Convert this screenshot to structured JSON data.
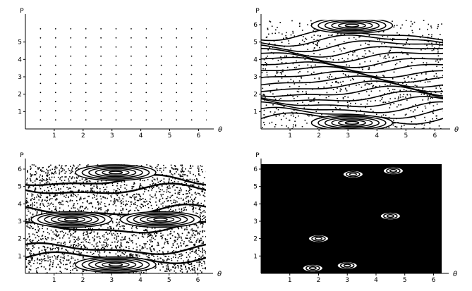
{
  "chart_data": [
    {
      "type": "scatter",
      "title": "",
      "xlabel": "θ",
      "ylabel": "P",
      "xlim": [
        0,
        6.2832
      ],
      "ylim": [
        0,
        6.2832
      ],
      "xticks": [
        "1",
        "2",
        "3",
        "4",
        "5",
        "6"
      ],
      "yticks": [
        "1",
        "2",
        "3",
        "4",
        "5"
      ],
      "grid": false,
      "description_level": "regular lattice of fixed points",
      "series": [
        {
          "points_x": [
            0.524,
            1.047,
            1.571,
            2.094,
            2.618,
            3.142,
            3.665,
            4.189,
            4.712,
            5.236,
            5.76,
            6.283
          ],
          "points_y": [
            0.524,
            1.047,
            1.571,
            2.094,
            2.618,
            3.142,
            3.665,
            4.189,
            4.712,
            5.236,
            5.76
          ],
          "layout": "grid"
        }
      ],
      "chaos": 0.0
    },
    {
      "type": "scatter",
      "title": "",
      "xlabel": "θ",
      "ylabel": "P",
      "xlim": [
        0,
        6.2832
      ],
      "ylim": [
        0,
        6.2832
      ],
      "xticks": [
        "1",
        "2",
        "3",
        "4",
        "5",
        "6"
      ],
      "yticks": [
        "1",
        "2",
        "3",
        "4",
        "5",
        "6"
      ],
      "grid": false,
      "resonance_centers": [
        [
          3.14,
          0.35
        ],
        [
          3.14,
          5.95
        ]
      ],
      "invariant_curves_p": [
        0.6,
        0.9,
        1.2,
        1.5,
        1.8,
        2.1,
        2.4,
        2.7,
        3.0,
        3.3,
        3.6,
        3.9,
        4.2,
        4.5,
        4.8,
        5.1,
        5.4
      ],
      "chaos": 0.18
    },
    {
      "type": "scatter",
      "title": "",
      "xlabel": "θ",
      "ylabel": "P",
      "xlim": [
        0,
        6.2832
      ],
      "ylim": [
        0,
        6.2832
      ],
      "xticks": [
        "1",
        "2",
        "3",
        "4",
        "5",
        "6"
      ],
      "yticks": [
        "1",
        "2",
        "3",
        "4",
        "5",
        "6"
      ],
      "grid": false,
      "resonance_centers": [
        [
          3.14,
          0.5
        ],
        [
          3.14,
          5.8
        ],
        [
          1.6,
          3.1
        ],
        [
          4.7,
          3.1
        ]
      ],
      "invariant_curves_p": [
        0.9,
        1.4,
        2.6,
        3.6,
        4.8,
        5.3
      ],
      "chaos": 0.55
    },
    {
      "type": "scatter",
      "title": "",
      "xlabel": "θ",
      "ylabel": "P",
      "xlim": [
        0,
        6.2832
      ],
      "ylim": [
        0,
        6.2832
      ],
      "xticks": [
        "1",
        "2",
        "3",
        "4",
        "5",
        "6"
      ],
      "yticks": [
        "1",
        "2",
        "3",
        "4",
        "5",
        "6"
      ],
      "grid": false,
      "islands": [
        [
          3.0,
          0.45
        ],
        [
          3.2,
          5.7
        ],
        [
          2.0,
          2.0
        ],
        [
          4.5,
          3.3
        ],
        [
          4.6,
          5.9
        ],
        [
          1.8,
          0.3
        ]
      ],
      "chaos": 0.95
    }
  ]
}
